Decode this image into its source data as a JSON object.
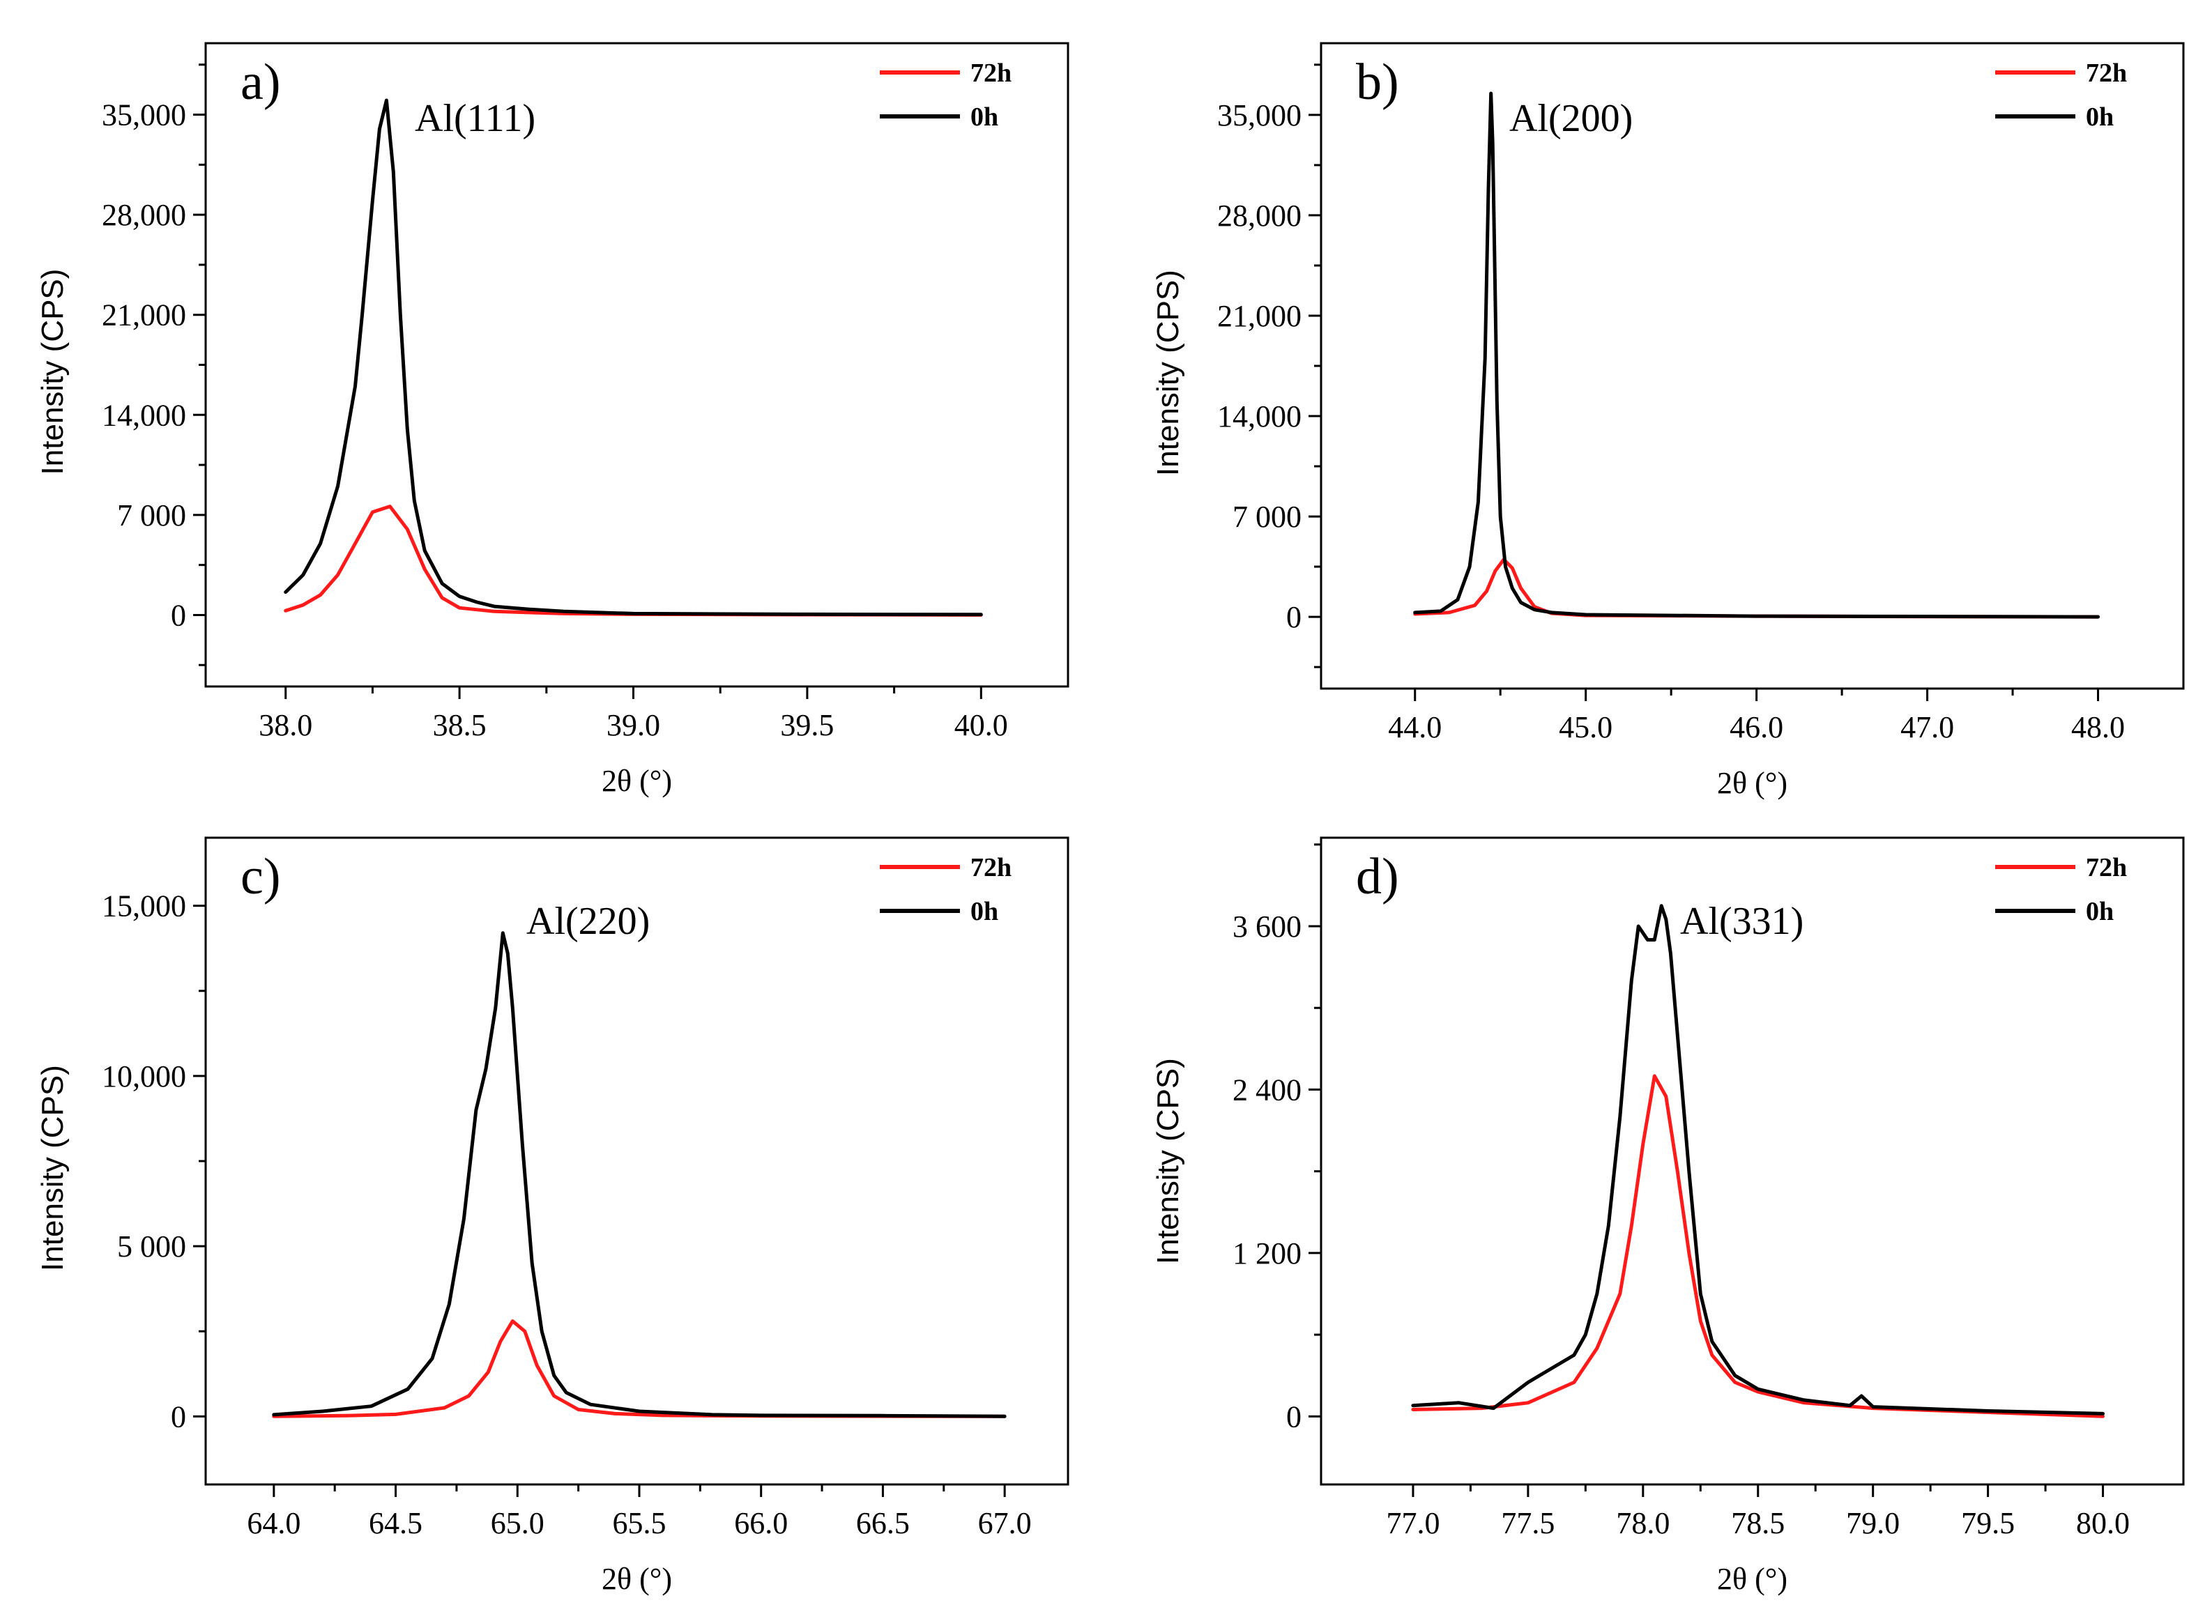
{
  "figure": {
    "panels": [
      {
        "letter": "a)",
        "peak_label": "Al(111)",
        "xlabel": "2θ (°)",
        "ylabel": "Intensity (CPS)",
        "xticks": [
          "38.0",
          "38.5",
          "39.0",
          "39.5",
          "40.0"
        ],
        "yticks": [
          "0",
          "7 000",
          "14,000",
          "21,000",
          "28,000",
          "35,000"
        ],
        "legend": [
          "72h",
          "0h"
        ]
      },
      {
        "letter": "b)",
        "peak_label": "Al(200)",
        "xlabel": "2θ (°)",
        "ylabel": "Intensity (CPS)",
        "xticks": [
          "44.0",
          "45.0",
          "46.0",
          "47.0",
          "48.0"
        ],
        "yticks": [
          "0",
          "7 000",
          "14,000",
          "21,000",
          "28,000",
          "35,000"
        ],
        "legend": [
          "72h",
          "0h"
        ]
      },
      {
        "letter": "c)",
        "peak_label": "Al(220)",
        "xlabel": "2θ (°)",
        "ylabel": "Intensity (CPS)",
        "xticks": [
          "64.0",
          "64.5",
          "65.0",
          "65.5",
          "66.0",
          "66.5",
          "67.0"
        ],
        "yticks": [
          "0",
          "5 000",
          "10,000",
          "15,000"
        ],
        "legend": [
          "72h",
          "0h"
        ]
      },
      {
        "letter": "d)",
        "peak_label": "Al(331)",
        "xlabel": "2θ (°)",
        "ylabel": "Intensity (CPS)",
        "xticks": [
          "77.0",
          "77.5",
          "78.0",
          "78.5",
          "79.0",
          "79.5",
          "80.0"
        ],
        "yticks": [
          "0",
          "1 200",
          "2 400",
          "3 600"
        ],
        "legend": [
          "72h",
          "0h"
        ]
      }
    ]
  },
  "chart_data": [
    {
      "type": "line",
      "panel": "a)",
      "title": "Al(111)",
      "xlabel": "2θ (°)",
      "ylabel": "Intensity (CPS)",
      "xlim": [
        37.77,
        40.25
      ],
      "ylim": [
        -5000,
        40000
      ],
      "xtick_values": [
        38.0,
        38.5,
        39.0,
        39.5,
        40.0
      ],
      "ytick_values": [
        0,
        7000,
        14000,
        21000,
        28000,
        35000
      ],
      "minor_yticks": true,
      "legend_position": "top-right",
      "series": [
        {
          "name": "72h",
          "color": "#ff1a1a",
          "x": [
            38.0,
            38.05,
            38.1,
            38.15,
            38.2,
            38.25,
            38.3,
            38.35,
            38.4,
            38.45,
            38.5,
            38.6,
            38.8,
            39.0,
            39.5,
            40.0
          ],
          "y": [
            300,
            700,
            1400,
            2800,
            5000,
            7200,
            7600,
            6000,
            3200,
            1200,
            500,
            250,
            100,
            50,
            20,
            0
          ]
        },
        {
          "name": "0h",
          "color": "#000000",
          "x": [
            38.0,
            38.05,
            38.1,
            38.15,
            38.2,
            38.22,
            38.25,
            38.27,
            38.29,
            38.31,
            38.33,
            38.35,
            38.37,
            38.4,
            38.45,
            38.5,
            38.55,
            38.6,
            38.7,
            38.8,
            39.0,
            39.5,
            40.0
          ],
          "y": [
            1600,
            2800,
            5000,
            9000,
            16000,
            21000,
            29000,
            34000,
            36000,
            31000,
            21000,
            13000,
            8000,
            4500,
            2200,
            1300,
            900,
            600,
            400,
            250,
            100,
            50,
            30
          ]
        }
      ]
    },
    {
      "type": "line",
      "panel": "b)",
      "title": "Al(200)",
      "xlabel": "2θ (°)",
      "ylabel": "Intensity (CPS)",
      "xlim": [
        43.45,
        48.5
      ],
      "ylim": [
        -5000,
        40000
      ],
      "xtick_values": [
        44.0,
        45.0,
        46.0,
        47.0,
        48.0
      ],
      "ytick_values": [
        0,
        7000,
        14000,
        21000,
        28000,
        35000
      ],
      "minor_yticks": true,
      "legend_position": "top-right",
      "series": [
        {
          "name": "72h",
          "color": "#ff1a1a",
          "x": [
            44.0,
            44.2,
            44.35,
            44.42,
            44.47,
            44.52,
            44.57,
            44.62,
            44.7,
            44.8,
            45.0,
            46.0,
            47.0,
            48.0
          ],
          "y": [
            200,
            300,
            800,
            1800,
            3200,
            4000,
            3400,
            2000,
            700,
            250,
            100,
            50,
            20,
            0
          ]
        },
        {
          "name": "0h",
          "color": "#000000",
          "x": [
            44.0,
            44.15,
            44.25,
            44.32,
            44.37,
            44.41,
            44.43,
            44.445,
            44.455,
            44.465,
            44.48,
            44.5,
            44.53,
            44.57,
            44.62,
            44.7,
            44.8,
            45.0,
            46.0,
            47.0,
            48.0
          ],
          "y": [
            300,
            400,
            1200,
            3500,
            8000,
            18000,
            30000,
            36500,
            33000,
            26000,
            15000,
            7000,
            3500,
            2000,
            1000,
            500,
            300,
            150,
            50,
            30,
            0
          ]
        }
      ]
    },
    {
      "type": "line",
      "panel": "c)",
      "title": "Al(220)",
      "xlabel": "2θ (°)",
      "ylabel": "Intensity (CPS)",
      "xlim": [
        63.72,
        67.26
      ],
      "ylim": [
        -2000,
        17000
      ],
      "xtick_values": [
        64.0,
        64.5,
        65.0,
        65.5,
        66.0,
        66.5,
        67.0
      ],
      "ytick_values": [
        0,
        5000,
        10000,
        15000
      ],
      "minor_yticks": true,
      "legend_position": "top-right",
      "series": [
        {
          "name": "72h",
          "color": "#ff1a1a",
          "x": [
            64.0,
            64.3,
            64.5,
            64.7,
            64.8,
            64.88,
            64.93,
            64.98,
            65.03,
            65.08,
            65.15,
            65.25,
            65.4,
            65.6,
            66.0,
            66.5,
            67.0
          ],
          "y": [
            0,
            20,
            60,
            250,
            600,
            1300,
            2200,
            2800,
            2500,
            1500,
            600,
            200,
            80,
            30,
            10,
            5,
            0
          ]
        },
        {
          "name": "0h",
          "color": "#000000",
          "x": [
            64.0,
            64.2,
            64.4,
            64.55,
            64.65,
            64.72,
            64.78,
            64.83,
            64.87,
            64.91,
            64.94,
            64.96,
            64.98,
            65.02,
            65.06,
            65.1,
            65.15,
            65.2,
            65.3,
            65.5,
            65.8,
            66.0,
            66.5,
            67.0
          ],
          "y": [
            50,
            150,
            300,
            800,
            1700,
            3300,
            5800,
            9000,
            10200,
            12000,
            14200,
            13600,
            12000,
            8000,
            4500,
            2500,
            1200,
            700,
            350,
            150,
            50,
            30,
            20,
            0
          ]
        }
      ]
    },
    {
      "type": "line",
      "panel": "d)",
      "title": "Al(331)",
      "xlabel": "2θ (°)",
      "ylabel": "Intensity (CPS)",
      "xlim": [
        76.6,
        80.35
      ],
      "ylim": [
        -500,
        4250
      ],
      "xtick_values": [
        77.0,
        77.5,
        78.0,
        78.5,
        79.0,
        79.5,
        80.0
      ],
      "ytick_values": [
        0,
        1200,
        2400,
        3600
      ],
      "minor_yticks": true,
      "legend_position": "top-right",
      "series": [
        {
          "name": "72h",
          "color": "#ff1a1a",
          "x": [
            77.0,
            77.3,
            77.5,
            77.7,
            77.8,
            77.9,
            77.95,
            78.0,
            78.05,
            78.1,
            78.15,
            78.2,
            78.25,
            78.3,
            78.4,
            78.5,
            78.7,
            79.0,
            79.5,
            80.0
          ],
          "y": [
            50,
            60,
            100,
            250,
            500,
            900,
            1400,
            2000,
            2500,
            2350,
            1800,
            1200,
            700,
            450,
            250,
            180,
            100,
            60,
            30,
            0
          ]
        },
        {
          "name": "0h",
          "color": "#000000",
          "x": [
            77.0,
            77.2,
            77.35,
            77.5,
            77.6,
            77.7,
            77.75,
            77.8,
            77.85,
            77.9,
            77.95,
            77.98,
            78.02,
            78.05,
            78.08,
            78.1,
            78.12,
            78.15,
            78.2,
            78.25,
            78.3,
            78.4,
            78.5,
            78.7,
            78.9,
            78.95,
            79.0,
            79.5,
            80.0
          ],
          "y": [
            80,
            100,
            60,
            250,
            350,
            450,
            600,
            900,
            1400,
            2200,
            3200,
            3600,
            3500,
            3500,
            3750,
            3650,
            3400,
            2800,
            1800,
            900,
            550,
            300,
            200,
            120,
            80,
            150,
            70,
            40,
            20
          ]
        }
      ]
    }
  ]
}
